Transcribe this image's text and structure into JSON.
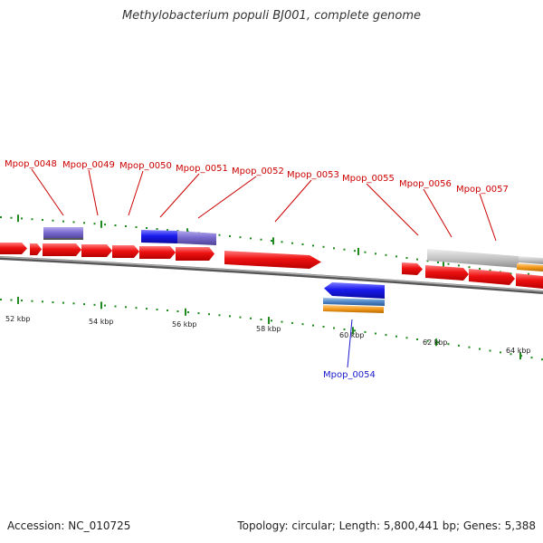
{
  "title": "Methylobacterium populi BJ001, complete genome",
  "footer": {
    "accession": "Accession: NC_010725",
    "summary": "Topology: circular; Length: 5,800,441 bp; Genes: 5,388"
  },
  "colors": {
    "forward_cds": "#ee1111",
    "blue_cds": "#1a1aee",
    "lavender_cds": "#7a6ccf",
    "grey_cds": "#c0c0c0",
    "orange_cds": "#f39a1c",
    "steel_cds": "#4f86c6",
    "tick": "#1e8a1e",
    "backbone": "#7a7a7a",
    "forward_label": "#cc0000",
    "reverse_label": "#1a1acc"
  },
  "scale_labels": [
    "52 kbp",
    "54 kbp",
    "56 kbp",
    "58 kbp",
    "60 kbp",
    "62 kbp",
    "64 kbp"
  ],
  "forward_labels": [
    "Mpop_0048",
    "Mpop_0049",
    "Mpop_0050",
    "Mpop_0051",
    "Mpop_0052",
    "Mpop_0053",
    "Mpop_0055",
    "Mpop_0056",
    "Mpop_0057"
  ],
  "reverse_labels": [
    "Mpop_0054"
  ]
}
